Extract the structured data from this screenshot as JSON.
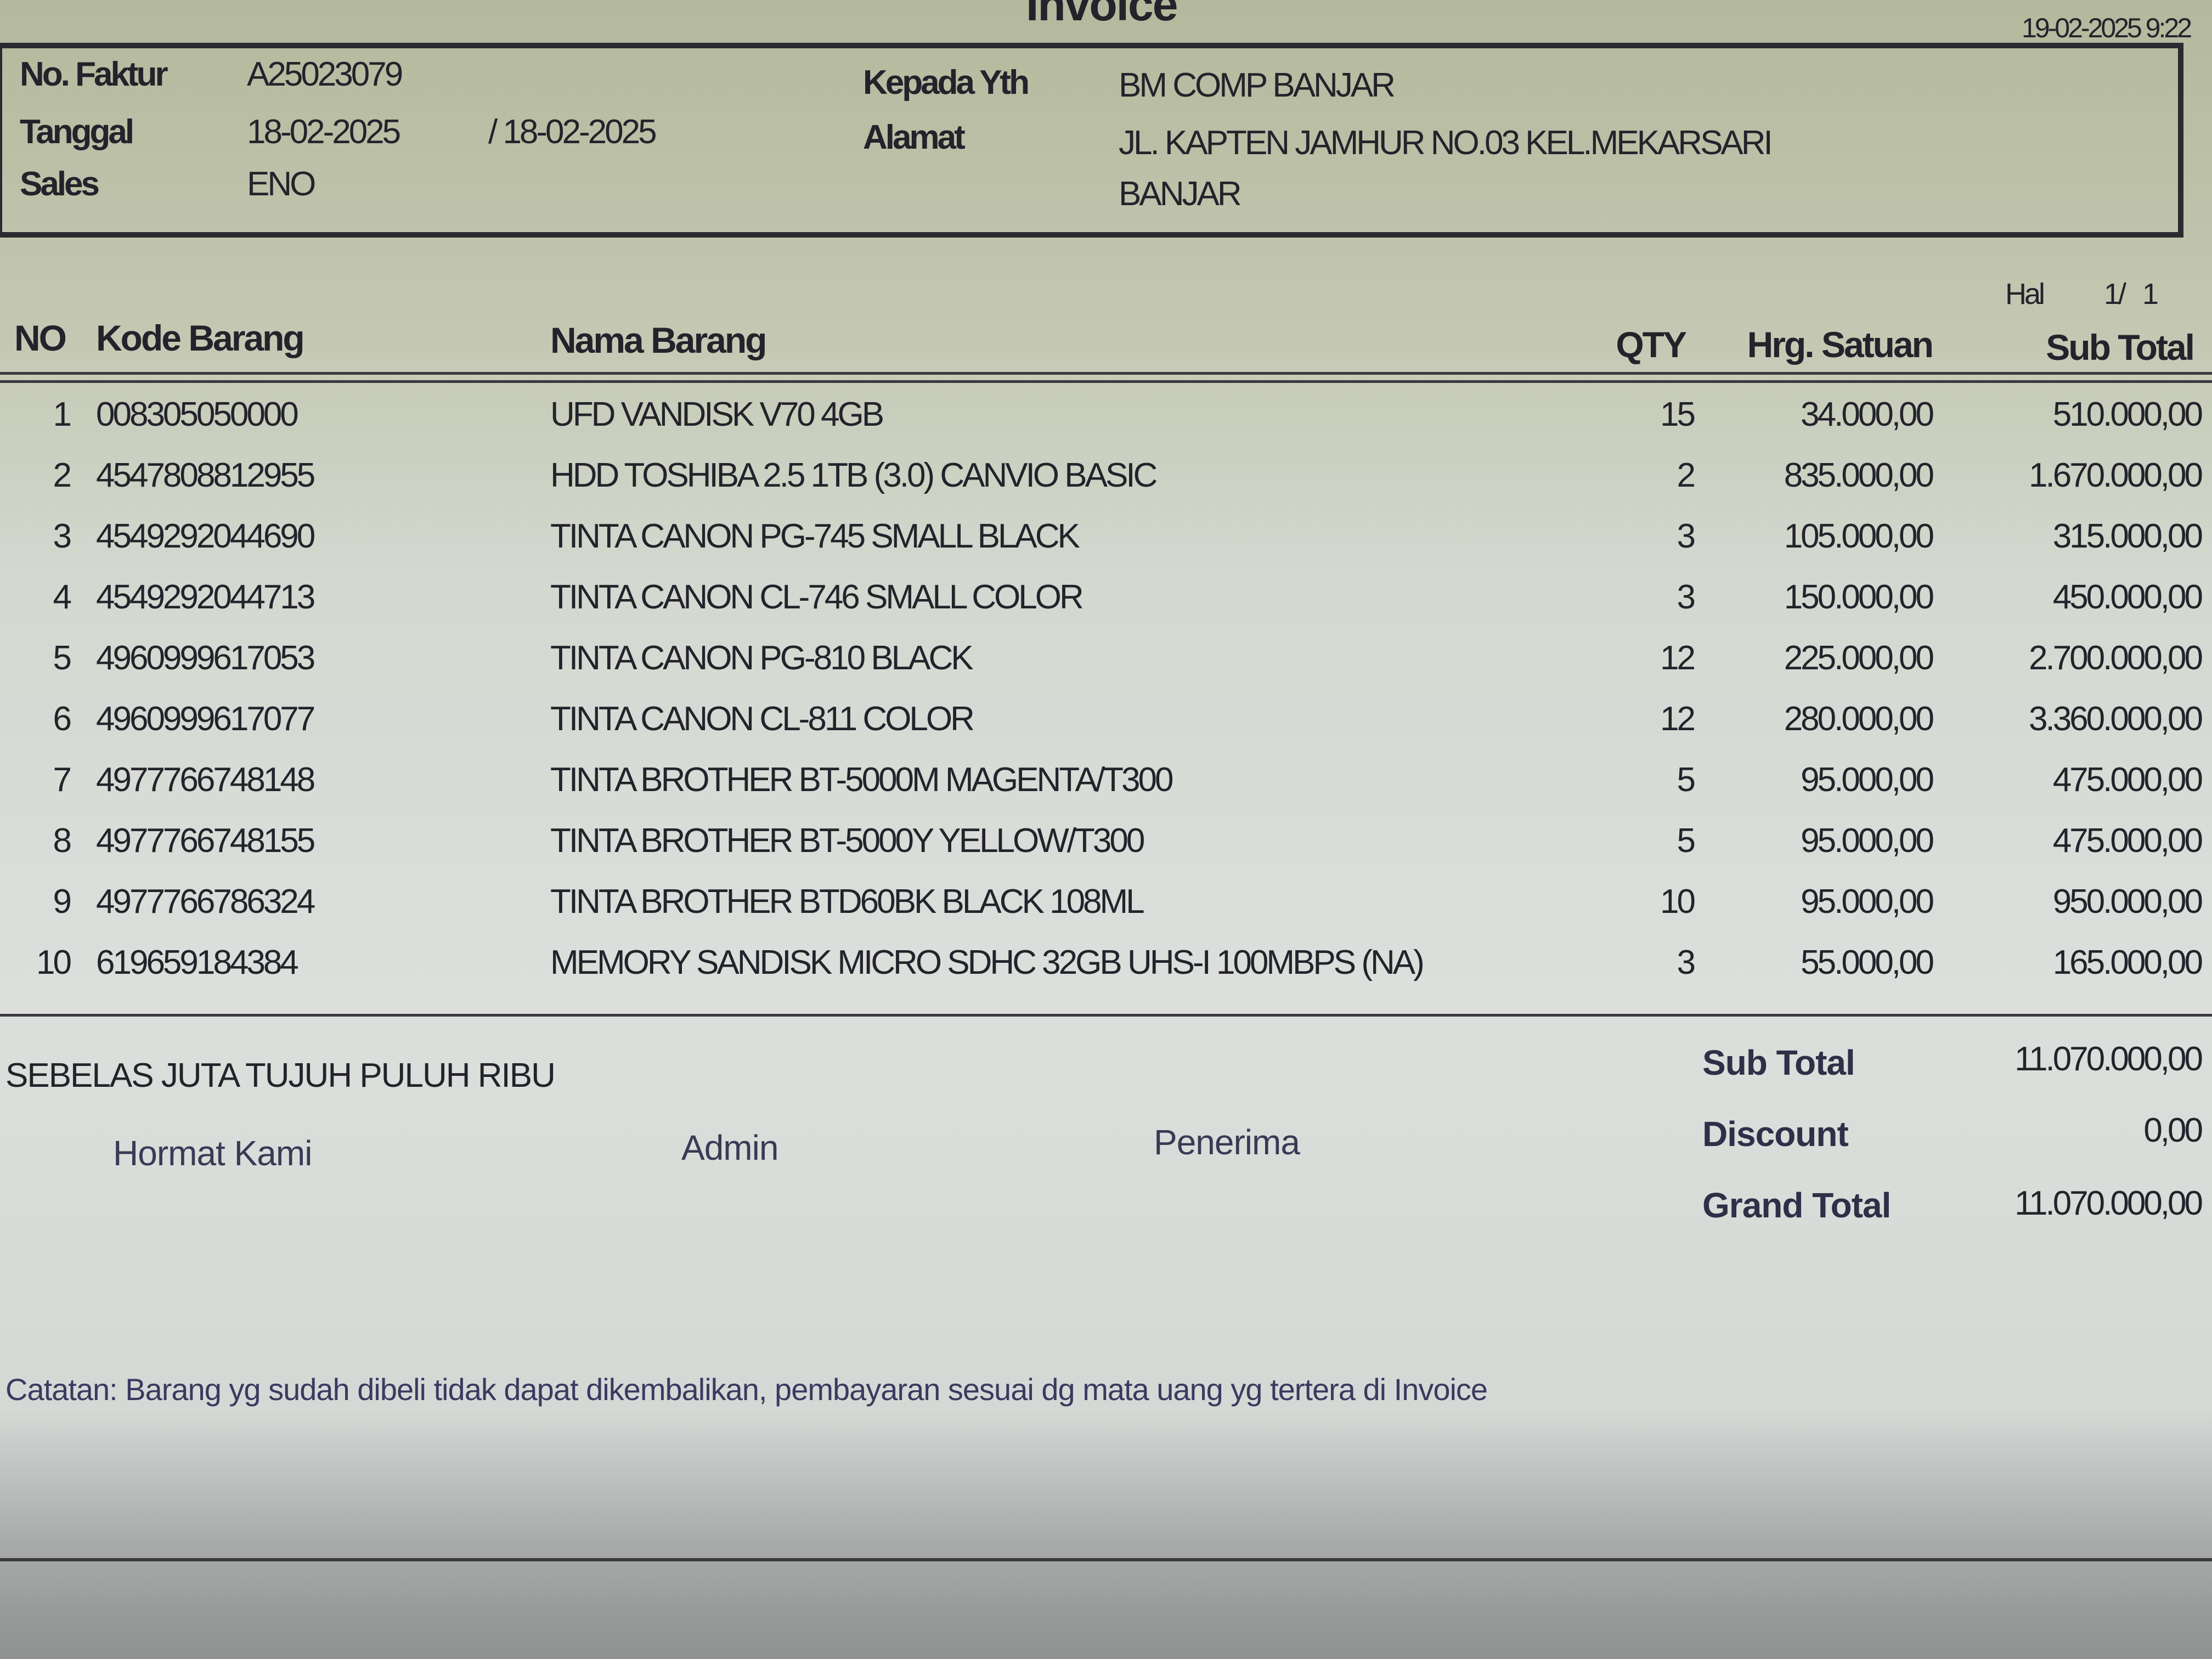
{
  "title": "Invoice",
  "printed_at": "19-02-2025 9:22",
  "header": {
    "no_faktur_label": "No. Faktur",
    "no_faktur": "A25023079",
    "tanggal_label": "Tanggal",
    "tanggal_from": "18-02-2025",
    "tanggal_to": "/ 18-02-2025",
    "sales_label": "Sales",
    "sales": "ENO",
    "kepada_label": "Kepada Yth",
    "kepada": "BM COMP BANJAR",
    "alamat_label": "Alamat",
    "alamat_line1": "JL. KAPTEN JAMHUR NO.03 KEL.MEKARSARI",
    "alamat_line2": "BANJAR"
  },
  "page": {
    "label": "Hal",
    "value": "1/   1"
  },
  "columns": {
    "no": "NO",
    "kode": "Kode Barang",
    "nama": "Nama Barang",
    "qty": "QTY",
    "harga": "Hrg. Satuan",
    "subtotal": "Sub Total"
  },
  "items": [
    {
      "no": "1",
      "kode": "008305050000",
      "nama": "UFD VANDISK V70 4GB",
      "qty": "15",
      "harga": "34.000,00",
      "subtotal": "510.000,00"
    },
    {
      "no": "2",
      "kode": "4547808812955",
      "nama": "HDD TOSHIBA 2.5 1TB (3.0) CANVIO BASIC",
      "qty": "2",
      "harga": "835.000,00",
      "subtotal": "1.670.000,00"
    },
    {
      "no": "3",
      "kode": "4549292044690",
      "nama": "TINTA CANON PG-745 SMALL BLACK",
      "qty": "3",
      "harga": "105.000,00",
      "subtotal": "315.000,00"
    },
    {
      "no": "4",
      "kode": "4549292044713",
      "nama": "TINTA CANON CL-746 SMALL COLOR",
      "qty": "3",
      "harga": "150.000,00",
      "subtotal": "450.000,00"
    },
    {
      "no": "5",
      "kode": "4960999617053",
      "nama": "TINTA CANON PG-810 BLACK",
      "qty": "12",
      "harga": "225.000,00",
      "subtotal": "2.700.000,00"
    },
    {
      "no": "6",
      "kode": "4960999617077",
      "nama": "TINTA CANON CL-811 COLOR",
      "qty": "12",
      "harga": "280.000,00",
      "subtotal": "3.360.000,00"
    },
    {
      "no": "7",
      "kode": "4977766748148",
      "nama": "TINTA BROTHER BT-5000M MAGENTA/T300",
      "qty": "5",
      "harga": "95.000,00",
      "subtotal": "475.000,00"
    },
    {
      "no": "8",
      "kode": "4977766748155",
      "nama": "TINTA BROTHER BT-5000Y YELLOW/T300",
      "qty": "5",
      "harga": "95.000,00",
      "subtotal": "475.000,00"
    },
    {
      "no": "9",
      "kode": "4977766786324",
      "nama": "TINTA BROTHER BTD60BK BLACK 108ML",
      "qty": "10",
      "harga": "95.000,00",
      "subtotal": "950.000,00"
    },
    {
      "no": "10",
      "kode": "619659184384",
      "nama": "MEMORY SANDISK MICRO SDHC 32GB UHS-I 100MBPS (NA)",
      "qty": "3",
      "harga": "55.000,00",
      "subtotal": "165.000,00"
    }
  ],
  "terbilang": "SEBELAS JUTA TUJUH PULUH RIBU",
  "signatures": {
    "hormat": "Hormat Kami",
    "admin": "Admin",
    "penerima": "Penerima"
  },
  "totals": {
    "subtotal_label": "Sub Total",
    "subtotal": "11.070.000,00",
    "discount_label": "Discount",
    "discount": "0,00",
    "grand_label": "Grand Total",
    "grand": "11.070.000,00"
  },
  "note": "Catatan: Barang yg sudah dibeli tidak dapat dikembalikan, pembayaran sesuai dg mata uang yg tertera di Invoice"
}
